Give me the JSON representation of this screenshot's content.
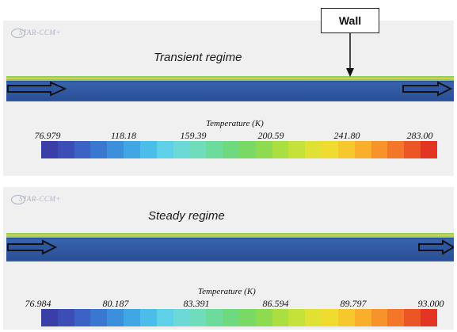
{
  "callout": {
    "label": "Wall"
  },
  "panels": [
    {
      "logo_text": "STAR-CCM+",
      "title": "Transient regime",
      "scale": {
        "title": "Temperature (K)",
        "ticks": [
          "76.979",
          "118.18",
          "159.39",
          "200.59",
          "241.80",
          "283.00"
        ]
      }
    },
    {
      "logo_text": "STAR-CCM+",
      "title": "Steady regime",
      "scale": {
        "title": "Temperature (K)",
        "ticks": [
          "76.984",
          "80.187",
          "83.391",
          "86.594",
          "89.797",
          "93.000"
        ]
      }
    }
  ],
  "colors": {
    "colormap": [
      "#3a3fa8",
      "#3c4db6",
      "#3b62c4",
      "#3a78d0",
      "#3b8fdb",
      "#40a7e4",
      "#4bbde9",
      "#5ed0e8",
      "#6dd9d6",
      "#6fdcbc",
      "#6ddb9c",
      "#6fd97f",
      "#7ad964",
      "#8fdb4f",
      "#aadf42",
      "#c5e23a",
      "#dfe235",
      "#f0dc30",
      "#f7c82e",
      "#f9ae2c",
      "#f8922a",
      "#f47628",
      "#ec5626",
      "#e23524"
    ],
    "pipe_fluid": "#2d57a0",
    "wall_layer": "#e4d85a"
  },
  "icons": [
    "flow-inlet-arrow-icon",
    "flow-outlet-arrow-icon"
  ]
}
